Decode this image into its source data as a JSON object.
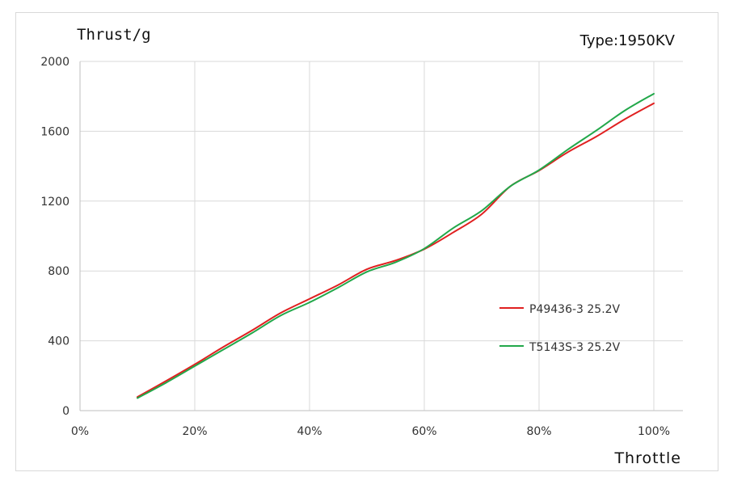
{
  "chart_data": {
    "type": "line",
    "title": "",
    "type_label": "Type:1950KV",
    "ylabel": "Thrust/g",
    "xlabel": "Throttle",
    "xlim": [
      0,
      100
    ],
    "ylim": [
      0,
      2000
    ],
    "xticks": [
      0,
      20,
      40,
      60,
      80,
      100
    ],
    "xtick_labels": [
      "0%",
      "20%",
      "40%",
      "60%",
      "80%",
      "100%"
    ],
    "yticks": [
      0,
      400,
      800,
      1200,
      1600,
      2000
    ],
    "ytick_labels": [
      "0",
      "400",
      "800",
      "1200",
      "1600",
      "2000"
    ],
    "grid": true,
    "legend_position": "right",
    "x": [
      10,
      15,
      20,
      25,
      30,
      35,
      40,
      45,
      50,
      55,
      60,
      65,
      70,
      75,
      80,
      85,
      90,
      95,
      100
    ],
    "series": [
      {
        "name": "P49436-3 25.2V",
        "color": "#e02020",
        "values": [
          78,
          170,
          265,
          365,
          460,
          560,
          640,
          720,
          810,
          860,
          925,
          1020,
          1125,
          1285,
          1375,
          1480,
          1570,
          1670,
          1760
        ]
      },
      {
        "name": "T5143S-3 25.2V",
        "color": "#22a84a",
        "values": [
          72,
          160,
          255,
          350,
          445,
          545,
          620,
          705,
          795,
          850,
          928,
          1045,
          1145,
          1285,
          1378,
          1495,
          1605,
          1720,
          1815
        ]
      }
    ]
  }
}
